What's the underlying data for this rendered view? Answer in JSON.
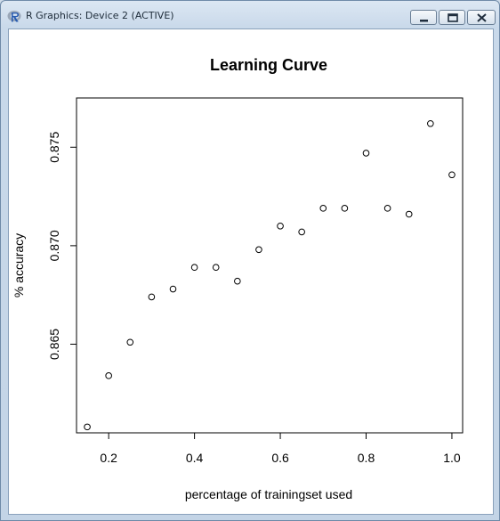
{
  "window": {
    "title": "R Graphics: Device 2 (ACTIVE)",
    "app_icon": "r-logo-icon",
    "controls": [
      "minimize-icon",
      "maximize-icon",
      "close-icon"
    ]
  },
  "chart_data": {
    "type": "scatter",
    "title": "Learning Curve",
    "xlabel": "percentage of trainingset used",
    "ylabel": "% accuracy",
    "xlim": [
      0.125,
      1.025
    ],
    "ylim": [
      0.8605,
      0.8775
    ],
    "x_ticks": [
      0.2,
      0.4,
      0.6,
      0.8,
      1.0
    ],
    "x_tick_labels": [
      "0.2",
      "0.4",
      "0.6",
      "0.8",
      "1.0"
    ],
    "y_ticks": [
      0.865,
      0.87,
      0.875
    ],
    "y_tick_labels": [
      "0.865",
      "0.870",
      "0.875"
    ],
    "grid": false,
    "marker": "open-circle",
    "points": [
      {
        "x": 0.15,
        "y": 0.8608
      },
      {
        "x": 0.2,
        "y": 0.8634
      },
      {
        "x": 0.25,
        "y": 0.8651
      },
      {
        "x": 0.3,
        "y": 0.8674
      },
      {
        "x": 0.35,
        "y": 0.8678
      },
      {
        "x": 0.4,
        "y": 0.8689
      },
      {
        "x": 0.45,
        "y": 0.8689
      },
      {
        "x": 0.5,
        "y": 0.8682
      },
      {
        "x": 0.55,
        "y": 0.8698
      },
      {
        "x": 0.6,
        "y": 0.871
      },
      {
        "x": 0.65,
        "y": 0.8707
      },
      {
        "x": 0.7,
        "y": 0.8719
      },
      {
        "x": 0.75,
        "y": 0.8719
      },
      {
        "x": 0.8,
        "y": 0.8747
      },
      {
        "x": 0.85,
        "y": 0.8719
      },
      {
        "x": 0.9,
        "y": 0.8716
      },
      {
        "x": 0.95,
        "y": 0.8762
      },
      {
        "x": 1.0,
        "y": 0.8736
      }
    ]
  }
}
